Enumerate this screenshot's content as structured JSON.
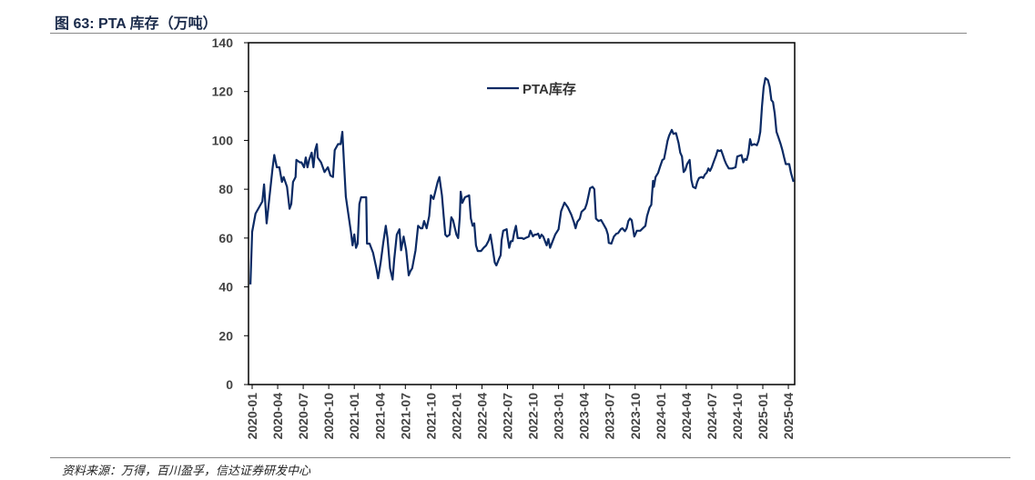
{
  "title": "图 63:  PTA 库存（万吨）",
  "source": "资料来源：万得，百川盈孚，信达证券研发中心",
  "chart_data": {
    "type": "line",
    "title": "PTA库存（万吨）",
    "xlabel": "",
    "ylabel": "",
    "ylim": [
      0,
      140
    ],
    "yticks": [
      "0",
      "20",
      "40",
      "60",
      "80",
      "100",
      "120",
      "140"
    ],
    "xticks": [
      "2020-01",
      "2020-04",
      "2020-07",
      "2020-10",
      "2021-01",
      "2021-04",
      "2021-07",
      "2021-10",
      "2022-01",
      "2022-04",
      "2022-07",
      "2022-10",
      "2023-01",
      "2023-04",
      "2023-07",
      "2023-10",
      "2024-01",
      "2024-04",
      "2024-07",
      "2024-10",
      "2025-01",
      "2025-04"
    ],
    "x_unit": "months since 2020-01",
    "legend": {
      "position": "top-center",
      "entries": [
        "PTA库存"
      ]
    },
    "color": "#0b2a64",
    "series": [
      {
        "name": "PTA库存",
        "points": [
          [
            -0.2,
            41
          ],
          [
            0,
            62.5
          ],
          [
            0.4,
            70
          ],
          [
            1.2,
            75
          ],
          [
            1.4,
            82
          ],
          [
            1.7,
            66
          ],
          [
            2.4,
            88.5
          ],
          [
            2.6,
            94
          ],
          [
            2.9,
            89
          ],
          [
            3.2,
            89
          ],
          [
            3.5,
            83
          ],
          [
            3.7,
            85
          ],
          [
            4.1,
            81
          ],
          [
            4.4,
            72
          ],
          [
            4.6,
            74
          ],
          [
            4.8,
            83
          ],
          [
            5.1,
            85
          ],
          [
            5.2,
            92
          ],
          [
            5.6,
            91
          ],
          [
            5.8,
            91
          ],
          [
            6.1,
            89
          ],
          [
            6.3,
            93
          ],
          [
            6.5,
            89
          ],
          [
            6.7,
            92
          ],
          [
            7.0,
            95
          ],
          [
            7.2,
            89
          ],
          [
            7.4,
            96
          ],
          [
            7.6,
            98.5
          ],
          [
            7.7,
            93
          ],
          [
            8.1,
            91
          ],
          [
            8.5,
            87
          ],
          [
            8.9,
            89
          ],
          [
            9.2,
            85.6
          ],
          [
            9.5,
            85
          ],
          [
            9.7,
            96
          ],
          [
            10.1,
            98.5
          ],
          [
            10.4,
            98.5
          ],
          [
            10.6,
            103.5
          ],
          [
            10.8,
            90
          ],
          [
            11.0,
            77
          ],
          [
            11.6,
            62.5
          ],
          [
            11.8,
            57
          ],
          [
            12.0,
            61.5
          ],
          [
            12.2,
            56
          ],
          [
            12.4,
            57.7
          ],
          [
            12.6,
            74
          ],
          [
            12.8,
            76.7
          ],
          [
            13.4,
            76.7
          ],
          [
            13.5,
            57.7
          ],
          [
            13.8,
            57.7
          ],
          [
            14.2,
            54
          ],
          [
            14.6,
            47.6
          ],
          [
            14.8,
            43.5
          ],
          [
            15.1,
            50
          ],
          [
            15.4,
            58
          ],
          [
            15.7,
            65
          ],
          [
            15.9,
            60
          ],
          [
            16.2,
            47.6
          ],
          [
            16.5,
            43
          ],
          [
            16.7,
            51.4
          ],
          [
            17.0,
            61.4
          ],
          [
            17.3,
            63.6
          ],
          [
            17.5,
            55
          ],
          [
            17.8,
            60.6
          ],
          [
            18.1,
            55
          ],
          [
            18.4,
            44.7
          ],
          [
            18.6,
            46.5
          ],
          [
            18.8,
            47.6
          ],
          [
            19.2,
            55
          ],
          [
            19.5,
            65
          ],
          [
            19.8,
            64
          ],
          [
            20.0,
            64
          ],
          [
            20.2,
            67
          ],
          [
            20.5,
            64
          ],
          [
            20.8,
            69
          ],
          [
            21.0,
            77.5
          ],
          [
            21.3,
            76
          ],
          [
            21.5,
            78.7
          ],
          [
            21.8,
            83
          ],
          [
            22.0,
            85
          ],
          [
            22.3,
            77.5
          ],
          [
            22.5,
            69
          ],
          [
            22.7,
            61.4
          ],
          [
            22.9,
            60.6
          ],
          [
            23.2,
            61.4
          ],
          [
            23.4,
            68.5
          ],
          [
            23.6,
            67.3
          ],
          [
            24.0,
            61.4
          ],
          [
            24.2,
            60
          ],
          [
            24.4,
            68.5
          ],
          [
            24.5,
            79
          ],
          [
            24.7,
            74.4
          ],
          [
            25.0,
            76.7
          ],
          [
            25.5,
            77.5
          ],
          [
            25.7,
            68
          ],
          [
            25.9,
            65
          ],
          [
            26.1,
            66
          ],
          [
            26.3,
            57
          ],
          [
            26.5,
            54.7
          ],
          [
            26.9,
            54.7
          ],
          [
            27.2,
            56
          ],
          [
            27.5,
            57
          ],
          [
            27.8,
            59
          ],
          [
            28.0,
            61.4
          ],
          [
            28.2,
            57
          ],
          [
            28.5,
            50
          ],
          [
            28.7,
            48.8
          ],
          [
            29.0,
            51.4
          ],
          [
            29.2,
            53
          ],
          [
            29.3,
            59
          ],
          [
            29.5,
            63
          ],
          [
            29.9,
            63.6
          ],
          [
            30.0,
            60.6
          ],
          [
            30.2,
            56
          ],
          [
            30.4,
            58.7
          ],
          [
            30.6,
            58.7
          ],
          [
            30.8,
            62.5
          ],
          [
            31.0,
            65
          ],
          [
            31.2,
            60
          ],
          [
            31.5,
            60
          ],
          [
            31.7,
            60
          ],
          [
            31.9,
            59.6
          ],
          [
            32.1,
            60
          ],
          [
            32.5,
            60.6
          ],
          [
            32.7,
            63
          ],
          [
            33.0,
            60.7
          ],
          [
            33.2,
            61.4
          ],
          [
            33.4,
            61.4
          ],
          [
            33.6,
            61.8
          ],
          [
            33.8,
            60
          ],
          [
            34.0,
            61.4
          ],
          [
            34.2,
            60.6
          ],
          [
            34.6,
            57
          ],
          [
            34.8,
            59.6
          ],
          [
            35.0,
            56
          ],
          [
            35.3,
            58.7
          ],
          [
            35.6,
            61.4
          ],
          [
            36.0,
            63.6
          ],
          [
            36.3,
            71
          ],
          [
            36.7,
            74.5
          ],
          [
            37.1,
            72.5
          ],
          [
            37.5,
            69.6
          ],
          [
            37.8,
            66.6
          ],
          [
            38.0,
            64
          ],
          [
            38.2,
            66.6
          ],
          [
            38.5,
            68
          ],
          [
            38.7,
            70.7
          ],
          [
            39.1,
            72
          ],
          [
            39.3,
            74
          ],
          [
            39.5,
            77
          ],
          [
            39.7,
            80.4
          ],
          [
            40.0,
            81
          ],
          [
            40.2,
            80
          ],
          [
            40.4,
            68
          ],
          [
            40.7,
            67
          ],
          [
            41.0,
            67.4
          ],
          [
            41.3,
            65.5
          ],
          [
            41.6,
            63.6
          ],
          [
            41.8,
            61.4
          ],
          [
            41.9,
            58
          ],
          [
            42.2,
            57.7
          ],
          [
            42.5,
            60.6
          ],
          [
            42.8,
            61.8
          ],
          [
            43.0,
            62
          ],
          [
            43.3,
            63.6
          ],
          [
            43.5,
            64
          ],
          [
            43.8,
            62.8
          ],
          [
            44.0,
            64
          ],
          [
            44.2,
            67
          ],
          [
            44.4,
            68
          ],
          [
            44.6,
            67.3
          ],
          [
            44.9,
            60.6
          ],
          [
            45.0,
            61.4
          ],
          [
            45.2,
            63
          ],
          [
            45.6,
            63
          ],
          [
            45.9,
            64
          ],
          [
            46.2,
            65
          ],
          [
            46.4,
            69
          ],
          [
            46.7,
            72.5
          ],
          [
            46.9,
            73.6
          ],
          [
            47.1,
            83.4
          ],
          [
            47.2,
            81
          ],
          [
            47.4,
            85
          ],
          [
            47.7,
            86.7
          ],
          [
            47.9,
            89
          ],
          [
            48.2,
            92
          ],
          [
            48.4,
            92.4
          ],
          [
            48.6,
            96
          ],
          [
            48.8,
            99.8
          ],
          [
            49.0,
            102
          ],
          [
            49.3,
            104.3
          ],
          [
            49.5,
            102.7
          ],
          [
            49.8,
            103
          ],
          [
            49.9,
            101.6
          ],
          [
            50.1,
            99
          ],
          [
            50.3,
            95
          ],
          [
            50.5,
            93.4
          ],
          [
            50.7,
            87
          ],
          [
            50.9,
            88
          ],
          [
            51.1,
            90.3
          ],
          [
            51.4,
            92
          ],
          [
            51.6,
            83.8
          ],
          [
            51.8,
            81
          ],
          [
            52.1,
            80.4
          ],
          [
            52.3,
            83
          ],
          [
            52.5,
            84.6
          ],
          [
            52.8,
            85
          ],
          [
            53.0,
            84.6
          ],
          [
            53.2,
            86
          ],
          [
            53.4,
            86.7
          ],
          [
            53.6,
            88.5
          ],
          [
            53.8,
            87.5
          ],
          [
            54.0,
            89
          ],
          [
            54.2,
            91
          ],
          [
            54.5,
            93.8
          ],
          [
            54.7,
            96
          ],
          [
            54.9,
            95.6
          ],
          [
            55.1,
            96
          ],
          [
            55.3,
            94
          ],
          [
            55.5,
            92
          ],
          [
            55.7,
            90.3
          ],
          [
            56.0,
            88.5
          ],
          [
            56.4,
            88.5
          ],
          [
            56.8,
            89
          ],
          [
            57.0,
            93.4
          ],
          [
            57.5,
            94
          ],
          [
            57.7,
            91
          ],
          [
            57.9,
            92.4
          ],
          [
            58.1,
            92
          ],
          [
            58.3,
            94.7
          ],
          [
            58.5,
            100.5
          ],
          [
            58.7,
            98
          ],
          [
            59.0,
            98.5
          ],
          [
            59.3,
            98
          ],
          [
            59.5,
            99.8
          ],
          [
            59.7,
            103.5
          ],
          [
            59.9,
            114
          ],
          [
            60.1,
            121.7
          ],
          [
            60.3,
            125.5
          ],
          [
            60.6,
            124.7
          ],
          [
            60.8,
            122
          ],
          [
            61.0,
            116.5
          ],
          [
            61.2,
            115.7
          ],
          [
            61.4,
            111
          ],
          [
            61.6,
            103.5
          ],
          [
            61.8,
            101.6
          ],
          [
            62.1,
            98.5
          ],
          [
            62.3,
            96
          ],
          [
            62.5,
            93
          ],
          [
            62.7,
            90.3
          ],
          [
            63.1,
            90.3
          ],
          [
            63.3,
            86.7
          ],
          [
            63.6,
            83
          ]
        ]
      }
    ]
  }
}
